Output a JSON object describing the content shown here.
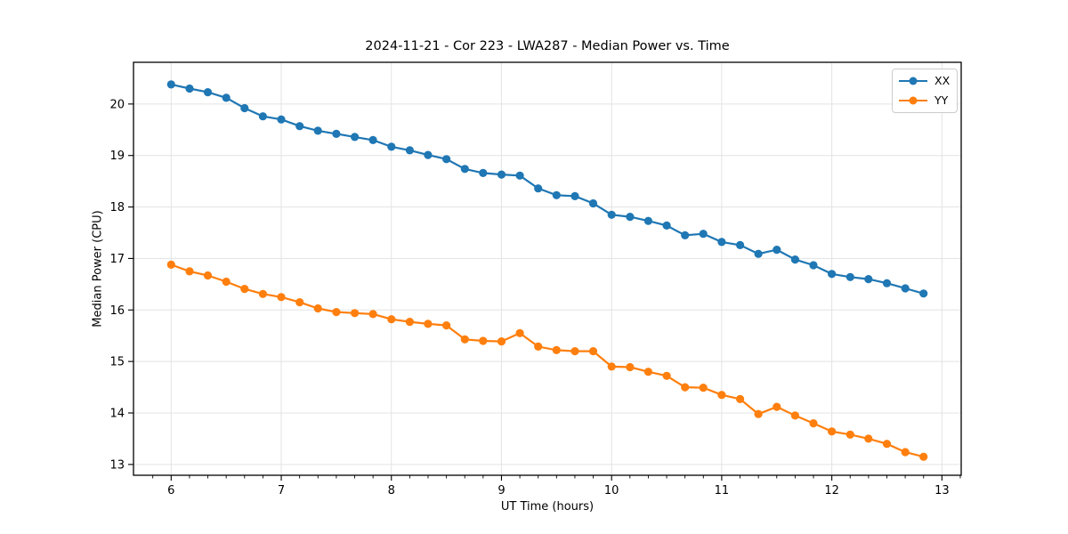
{
  "title": "2024-11-21 - Cor 223 - LWA287 - Median Power vs. Time",
  "chart_data": {
    "type": "line",
    "title": "2024-11-21 - Cor 223 - LWA287 - Median Power vs. Time",
    "xlabel": "UT Time (hours)",
    "ylabel": "Median Power (CPU)",
    "xlim": [
      5.658,
      13.175
    ],
    "ylim": [
      12.79,
      20.81
    ],
    "xticks": [
      6,
      7,
      8,
      9,
      10,
      11,
      12,
      13
    ],
    "yticks": [
      13,
      14,
      15,
      16,
      17,
      18,
      19,
      20
    ],
    "minor_xtick_step": 0.1667,
    "grid": true,
    "grid_color": "#e3e3e3",
    "legend_position": "upper right",
    "x": [
      6.0,
      6.167,
      6.333,
      6.5,
      6.667,
      6.833,
      7.0,
      7.167,
      7.333,
      7.5,
      7.667,
      7.833,
      8.0,
      8.167,
      8.333,
      8.5,
      8.667,
      8.833,
      9.0,
      9.167,
      9.333,
      9.5,
      9.667,
      9.833,
      10.0,
      10.167,
      10.333,
      10.5,
      10.667,
      10.833,
      11.0,
      11.167,
      11.333,
      11.5,
      11.667,
      11.833,
      12.0,
      12.167,
      12.333,
      12.5,
      12.667,
      12.833
    ],
    "series": [
      {
        "name": "XX",
        "color": "#1f77b4",
        "values": [
          20.38,
          20.3,
          20.23,
          20.12,
          19.92,
          19.76,
          19.7,
          19.57,
          19.48,
          19.42,
          19.36,
          19.3,
          19.17,
          19.1,
          19.01,
          18.93,
          18.74,
          18.66,
          18.63,
          18.61,
          18.36,
          18.23,
          18.21,
          18.07,
          17.85,
          17.81,
          17.73,
          17.64,
          17.45,
          17.48,
          17.32,
          17.26,
          17.09,
          17.17,
          16.98,
          16.87,
          16.7,
          16.64,
          16.6,
          16.52,
          16.42,
          16.32
        ]
      },
      {
        "name": "YY",
        "color": "#ff7f0e",
        "values": [
          16.88,
          16.75,
          16.67,
          16.55,
          16.41,
          16.31,
          16.25,
          16.15,
          16.03,
          15.96,
          15.94,
          15.92,
          15.82,
          15.77,
          15.73,
          15.7,
          15.43,
          15.4,
          15.39,
          15.55,
          15.29,
          15.22,
          15.2,
          15.2,
          14.9,
          14.89,
          14.8,
          14.72,
          14.5,
          14.49,
          14.35,
          14.27,
          13.98,
          14.12,
          13.95,
          13.8,
          13.64,
          13.58,
          13.5,
          13.4,
          13.24,
          13.15
        ]
      }
    ]
  }
}
